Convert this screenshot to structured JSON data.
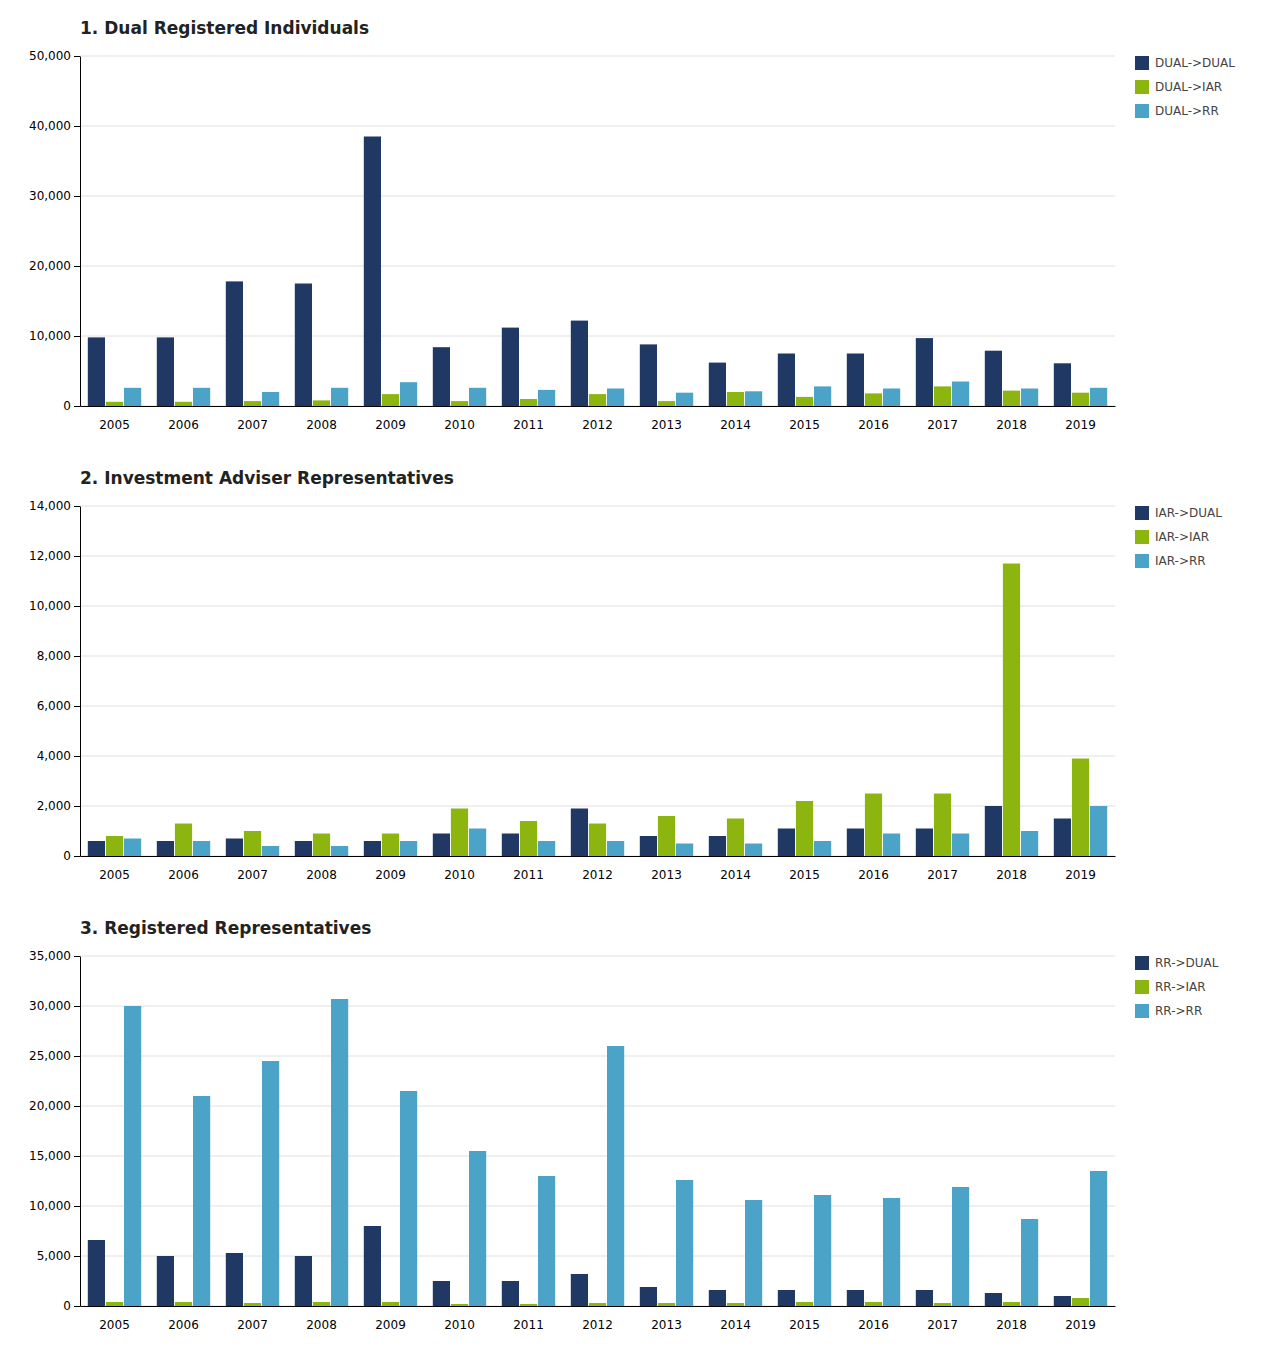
{
  "chart_data": [
    {
      "type": "bar",
      "title": "1. Dual Registered Individuals",
      "categories": [
        "2005",
        "2006",
        "2007",
        "2008",
        "2009",
        "2010",
        "2011",
        "2012",
        "2013",
        "2014",
        "2015",
        "2016",
        "2017",
        "2018",
        "2019"
      ],
      "series": [
        {
          "name": "DUAL->DUAL",
          "color": "#1f3864",
          "values": [
            9800,
            9800,
            17800,
            17500,
            38500,
            8400,
            11200,
            12200,
            8800,
            6200,
            7500,
            7500,
            9700,
            7900,
            6100
          ]
        },
        {
          "name": "DUAL->IAR",
          "color": "#8db510",
          "values": [
            600,
            600,
            700,
            800,
            1700,
            700,
            1000,
            1700,
            700,
            2000,
            1300,
            1800,
            2800,
            2200,
            1900
          ]
        },
        {
          "name": "DUAL->RR",
          "color": "#4ba3c7",
          "values": [
            2600,
            2600,
            2000,
            2600,
            3400,
            2600,
            2300,
            2500,
            1900,
            2100,
            2800,
            2500,
            3500,
            2500,
            2600
          ]
        }
      ],
      "ylim": [
        0,
        50000
      ],
      "yticks": [
        0,
        {
          "value": 10000,
          "label": "10,000"
        },
        {
          "value": 20000,
          "label": "20,000"
        },
        {
          "value": 30000,
          "label": "30,000"
        },
        {
          "value": 40000,
          "label": "40,000"
        },
        {
          "value": 50000,
          "label": "50,000"
        }
      ],
      "grid": true,
      "legend": "upper right"
    },
    {
      "type": "bar",
      "title": "2. Investment Adviser Representatives",
      "categories": [
        "2005",
        "2006",
        "2007",
        "2008",
        "2009",
        "2010",
        "2011",
        "2012",
        "2013",
        "2014",
        "2015",
        "2016",
        "2017",
        "2018",
        "2019"
      ],
      "series": [
        {
          "name": "IAR->DUAL",
          "color": "#1f3864",
          "values": [
            600,
            600,
            700,
            600,
            600,
            900,
            900,
            1900,
            800,
            800,
            1100,
            1100,
            1100,
            2000,
            1500
          ]
        },
        {
          "name": "IAR->IAR",
          "color": "#8db510",
          "values": [
            800,
            1300,
            1000,
            900,
            900,
            1900,
            1400,
            1300,
            1600,
            1500,
            2200,
            2500,
            2500,
            11700,
            3900
          ]
        },
        {
          "name": "IAR->RR",
          "color": "#4ba3c7",
          "values": [
            700,
            600,
            400,
            400,
            600,
            1100,
            600,
            600,
            500,
            500,
            600,
            900,
            900,
            1000,
            2000
          ]
        }
      ],
      "ylim": [
        0,
        14000
      ],
      "yticks": [
        0,
        {
          "value": 2000,
          "label": "2,000"
        },
        {
          "value": 4000,
          "label": "4,000"
        },
        {
          "value": 6000,
          "label": "6,000"
        },
        {
          "value": 8000,
          "label": "8,000"
        },
        {
          "value": 10000,
          "label": "10,000"
        },
        {
          "value": 12000,
          "label": "12,000"
        },
        {
          "value": 14000,
          "label": "14,000"
        }
      ],
      "grid": true,
      "legend": "upper right"
    },
    {
      "type": "bar",
      "title": "3. Registered Representatives",
      "categories": [
        "2005",
        "2006",
        "2007",
        "2008",
        "2009",
        "2010",
        "2011",
        "2012",
        "2013",
        "2014",
        "2015",
        "2016",
        "2017",
        "2018",
        "2019"
      ],
      "series": [
        {
          "name": "RR->DUAL",
          "color": "#1f3864",
          "values": [
            6600,
            5000,
            5300,
            5000,
            8000,
            2500,
            2500,
            3200,
            1900,
            1600,
            1600,
            1600,
            1600,
            1300,
            1000
          ]
        },
        {
          "name": "RR->IAR",
          "color": "#8db510",
          "values": [
            400,
            400,
            300,
            400,
            400,
            200,
            200,
            300,
            300,
            300,
            400,
            400,
            300,
            400,
            800
          ]
        },
        {
          "name": "RR->RR",
          "color": "#4ba3c7",
          "values": [
            30000,
            21000,
            24500,
            30700,
            21500,
            15500,
            13000,
            26000,
            12600,
            10600,
            11100,
            10800,
            11900,
            8700,
            13500
          ]
        }
      ],
      "ylim": [
        0,
        35000
      ],
      "yticks": [
        0,
        {
          "value": 5000,
          "label": "5,000"
        },
        {
          "value": 10000,
          "label": "10,000"
        },
        {
          "value": 15000,
          "label": "15,000"
        },
        {
          "value": 20000,
          "label": "20,000"
        },
        {
          "value": 25000,
          "label": "25,000"
        },
        {
          "value": 30000,
          "label": "30,000"
        },
        {
          "value": 35000,
          "label": "35,000"
        }
      ],
      "grid": true,
      "legend": "upper right"
    }
  ]
}
